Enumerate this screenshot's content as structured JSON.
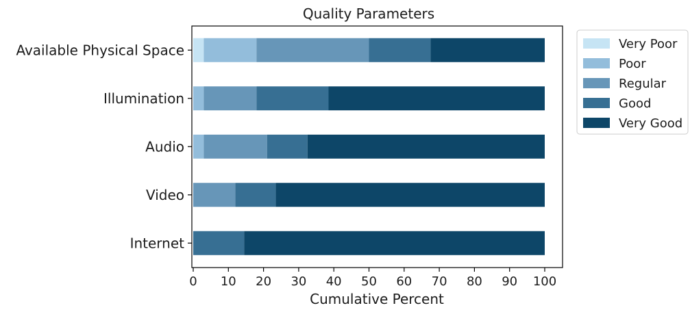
{
  "chart_data": {
    "type": "bar",
    "orientation": "horizontal",
    "stacked": true,
    "title": "Quality Parameters",
    "xlabel": "Cumulative Percent",
    "ylabel": "",
    "xlim": [
      0,
      100
    ],
    "xticks": [
      0,
      10,
      20,
      30,
      40,
      50,
      60,
      70,
      80,
      90,
      100
    ],
    "grid": false,
    "legend_position": "outside-right",
    "categories": [
      "Available Physical Space",
      "Illumination",
      "Audio",
      "Video",
      "Internet"
    ],
    "series": [
      {
        "name": "Very Poor",
        "color": "#c6e4f4",
        "values": [
          3,
          0,
          0,
          0,
          0
        ]
      },
      {
        "name": "Poor",
        "color": "#93bddb",
        "values": [
          15,
          3,
          3,
          0,
          0
        ]
      },
      {
        "name": "Regular",
        "color": "#6796b8",
        "values": [
          32,
          15,
          18,
          12,
          0
        ]
      },
      {
        "name": "Good",
        "color": "#376f93",
        "values": [
          17.5,
          20.5,
          11.5,
          11.5,
          14.5
        ]
      },
      {
        "name": "Very Good",
        "color": "#0d4668",
        "values": [
          32.5,
          61.5,
          67.5,
          76.5,
          85.5
        ]
      }
    ]
  }
}
